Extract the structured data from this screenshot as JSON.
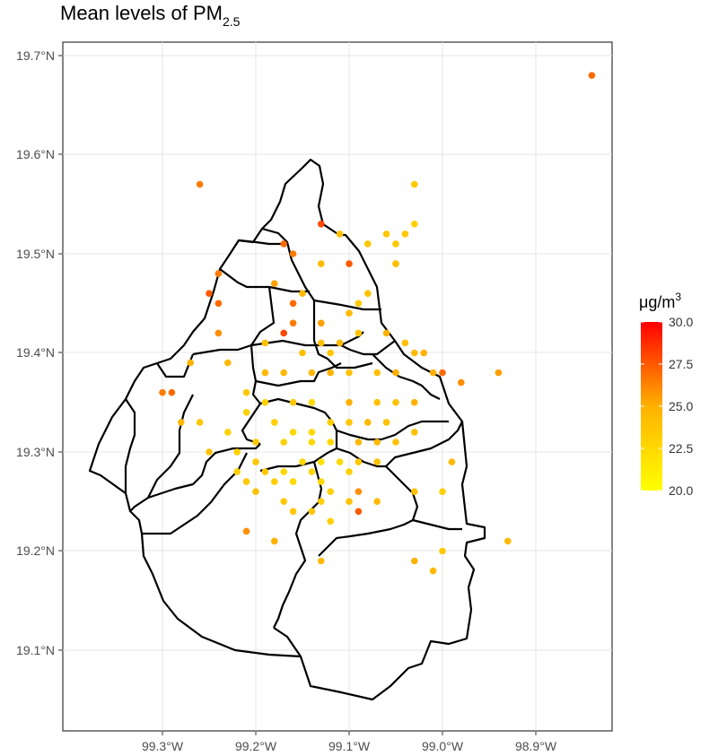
{
  "title": {
    "main": "Mean levels of PM",
    "sub": "2.5"
  },
  "legend": {
    "unit": "μg",
    "denominator": "m",
    "power": "3",
    "ticks": [
      "30.0",
      "27.5",
      "25.0",
      "22.5",
      "20.0"
    ],
    "low_color": "#ffff00",
    "high_color": "#ff0000"
  },
  "axes": {
    "x_ticks": [
      "99.3°W",
      "99.2°W",
      "99.1°W",
      "99.0°W",
      "98.9°W"
    ],
    "y_ticks": [
      "19.7°N",
      "19.6°N",
      "19.5°N",
      "19.4°N",
      "19.3°N",
      "19.2°N",
      "19.1°N"
    ]
  },
  "chart_data": {
    "type": "scatter",
    "title": "Mean levels of PM2.5",
    "xlim": [
      -99.38,
      -98.83
    ],
    "ylim": [
      19.03,
      19.74
    ],
    "color_scale": {
      "min": 20.0,
      "max": 30.0,
      "low": "#ffff00",
      "high": "#ff0000"
    },
    "points": [
      [
        -98.84,
        19.68,
        27.0
      ],
      [
        -99.26,
        19.57,
        26.5
      ],
      [
        -99.03,
        19.57,
        23.5
      ],
      [
        -99.13,
        19.53,
        28.0
      ],
      [
        -99.03,
        19.53,
        23.0
      ],
      [
        -99.11,
        19.52,
        24.0
      ],
      [
        -99.06,
        19.52,
        23.5
      ],
      [
        -99.04,
        19.52,
        23.5
      ],
      [
        -99.17,
        19.51,
        27.0
      ],
      [
        -99.16,
        19.5,
        26.5
      ],
      [
        -99.08,
        19.51,
        23.5
      ],
      [
        -99.05,
        19.51,
        23.5
      ],
      [
        -99.13,
        19.49,
        24.5
      ],
      [
        -99.1,
        19.49,
        27.5
      ],
      [
        -99.05,
        19.49,
        25.5
      ],
      [
        -99.24,
        19.48,
        26.5
      ],
      [
        -99.18,
        19.47,
        25.5
      ],
      [
        -99.15,
        19.46,
        24.5
      ],
      [
        -99.08,
        19.46,
        24.0
      ],
      [
        -99.05,
        19.49,
        24.0
      ],
      [
        -99.25,
        19.46,
        27.5
      ],
      [
        -99.24,
        19.45,
        27.0
      ],
      [
        -99.16,
        19.45,
        27.0
      ],
      [
        -99.16,
        19.43,
        26.5
      ],
      [
        -99.13,
        19.43,
        25.5
      ],
      [
        -99.1,
        19.44,
        24.5
      ],
      [
        -99.09,
        19.45,
        23.5
      ],
      [
        -99.17,
        19.42,
        28.0
      ],
      [
        -99.13,
        19.41,
        24.0
      ],
      [
        -99.11,
        19.41,
        24.5
      ],
      [
        -99.24,
        19.42,
        26.0
      ],
      [
        -99.19,
        19.41,
        24.0
      ],
      [
        -99.15,
        19.4,
        24.0
      ],
      [
        -99.12,
        19.4,
        23.5
      ],
      [
        -99.09,
        19.42,
        24.0
      ],
      [
        -99.06,
        19.42,
        25.0
      ],
      [
        -99.04,
        19.41,
        24.0
      ],
      [
        -99.03,
        19.4,
        24.5
      ],
      [
        -99.02,
        19.4,
        25.0
      ],
      [
        -99.01,
        19.38,
        25.0
      ],
      [
        -99.0,
        19.38,
        27.0
      ],
      [
        -98.98,
        19.37,
        26.0
      ],
      [
        -98.94,
        19.38,
        25.5
      ],
      [
        -99.27,
        19.39,
        25.0
      ],
      [
        -99.23,
        19.39,
        24.5
      ],
      [
        -99.19,
        19.38,
        24.5
      ],
      [
        -99.17,
        19.38,
        24.5
      ],
      [
        -99.14,
        19.38,
        24.5
      ],
      [
        -99.12,
        19.38,
        25.0
      ],
      [
        -99.1,
        19.38,
        24.0
      ],
      [
        -99.07,
        19.38,
        24.0
      ],
      [
        -99.05,
        19.38,
        25.0
      ],
      [
        -99.3,
        19.36,
        26.5
      ],
      [
        -99.29,
        19.36,
        27.0
      ],
      [
        -99.21,
        19.36,
        23.5
      ],
      [
        -99.19,
        19.35,
        23.0
      ],
      [
        -99.16,
        19.35,
        23.5
      ],
      [
        -99.14,
        19.35,
        22.5
      ],
      [
        -99.1,
        19.35,
        25.0
      ],
      [
        -99.07,
        19.35,
        24.0
      ],
      [
        -99.05,
        19.35,
        24.0
      ],
      [
        -99.03,
        19.35,
        25.0
      ],
      [
        -99.21,
        19.34,
        23.0
      ],
      [
        -99.18,
        19.33,
        23.0
      ],
      [
        -99.16,
        19.32,
        22.5
      ],
      [
        -99.14,
        19.32,
        22.5
      ],
      [
        -99.12,
        19.33,
        23.0
      ],
      [
        -99.1,
        19.33,
        23.5
      ],
      [
        -99.08,
        19.33,
        24.5
      ],
      [
        -99.06,
        19.33,
        24.0
      ],
      [
        -99.03,
        19.32,
        24.0
      ],
      [
        -99.28,
        19.33,
        24.5
      ],
      [
        -99.26,
        19.33,
        23.5
      ],
      [
        -99.23,
        19.32,
        23.0
      ],
      [
        -99.2,
        19.31,
        23.5
      ],
      [
        -99.17,
        19.31,
        23.0
      ],
      [
        -99.14,
        19.31,
        22.5
      ],
      [
        -99.12,
        19.31,
        22.5
      ],
      [
        -99.09,
        19.31,
        24.5
      ],
      [
        -99.07,
        19.31,
        24.5
      ],
      [
        -99.05,
        19.31,
        24.0
      ],
      [
        -99.25,
        19.3,
        24.0
      ],
      [
        -99.22,
        19.3,
        23.0
      ],
      [
        -99.2,
        19.29,
        23.5
      ],
      [
        -99.15,
        19.29,
        22.5
      ],
      [
        -99.13,
        19.29,
        22.0
      ],
      [
        -99.11,
        19.29,
        22.5
      ],
      [
        -99.09,
        19.29,
        23.5
      ],
      [
        -99.07,
        19.29,
        24.0
      ],
      [
        -99.22,
        19.28,
        23.0
      ],
      [
        -99.19,
        19.28,
        23.5
      ],
      [
        -99.17,
        19.28,
        22.5
      ],
      [
        -99.14,
        19.28,
        22.5
      ],
      [
        -99.13,
        19.27,
        22.5
      ],
      [
        -99.1,
        19.28,
        23.0
      ],
      [
        -98.99,
        19.29,
        24.5
      ],
      [
        -99.21,
        19.27,
        23.5
      ],
      [
        -99.18,
        19.27,
        23.0
      ],
      [
        -99.16,
        19.27,
        22.5
      ],
      [
        -99.12,
        19.26,
        23.0
      ],
      [
        -99.09,
        19.26,
        26.0
      ],
      [
        -99.03,
        19.26,
        24.0
      ],
      [
        -99.2,
        19.26,
        24.0
      ],
      [
        -99.17,
        19.25,
        23.5
      ],
      [
        -99.13,
        19.25,
        23.0
      ],
      [
        -99.1,
        19.25,
        24.0
      ],
      [
        -99.07,
        19.25,
        24.5
      ],
      [
        -99.0,
        19.26,
        23.0
      ],
      [
        -99.16,
        19.24,
        23.5
      ],
      [
        -99.14,
        19.24,
        23.5
      ],
      [
        -99.12,
        19.23,
        23.0
      ],
      [
        -99.09,
        19.24,
        27.5
      ],
      [
        -99.21,
        19.22,
        26.0
      ],
      [
        -99.18,
        19.21,
        25.0
      ],
      [
        -99.13,
        19.19,
        24.5
      ],
      [
        -99.03,
        19.19,
        25.0
      ],
      [
        -99.0,
        19.2,
        23.5
      ],
      [
        -99.01,
        19.18,
        24.5
      ],
      [
        -98.93,
        19.21,
        24.5
      ]
    ]
  }
}
